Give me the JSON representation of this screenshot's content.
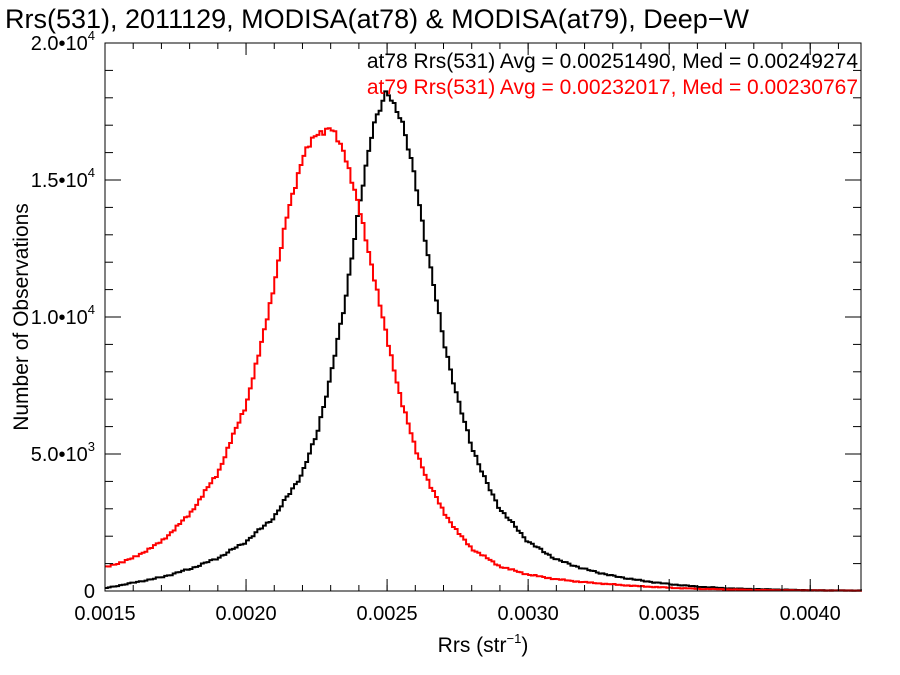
{
  "chart_data": {
    "type": "line",
    "step": true,
    "title": "Rrs(531), 2011129, MODISA(at78) & MODISA(at79), Deep−W",
    "xlabel": "Rrs (str",
    "xlabel_sup": "−1",
    "xlabel_tail": ")",
    "ylabel": "Number of Observations",
    "xlim": [
      0.0015,
      0.00418
    ],
    "ylim": [
      0,
      20000
    ],
    "x_ticks": [
      {
        "value": 0.0015,
        "label": "0.0015"
      },
      {
        "value": 0.002,
        "label": "0.0020"
      },
      {
        "value": 0.0025,
        "label": "0.0025"
      },
      {
        "value": 0.003,
        "label": "0.0030"
      },
      {
        "value": 0.0035,
        "label": "0.0035"
      },
      {
        "value": 0.004,
        "label": "0.0040"
      }
    ],
    "y_ticks": [
      {
        "value": 0,
        "base": "0",
        "exp": ""
      },
      {
        "value": 5000,
        "base": "5.0•10",
        "exp": "3"
      },
      {
        "value": 10000,
        "base": "1.0•10",
        "exp": "4"
      },
      {
        "value": 15000,
        "base": "1.5•10",
        "exp": "4"
      },
      {
        "value": 20000,
        "base": "2.0•10",
        "exp": "4"
      }
    ],
    "legend": [
      {
        "text": "at78 Rrs(531) Avg = 0.00251490, Med = 0.00249274",
        "color": "#000000"
      },
      {
        "text": "at79 Rrs(531) Avg = 0.00232017, Med = 0.00230767",
        "color": "#ff0000"
      }
    ],
    "legend_position": "top-right",
    "series": [
      {
        "color": "#000000",
        "x": [
          0.0015,
          0.0016,
          0.0017,
          0.0018,
          0.0019,
          0.002,
          0.0021,
          0.0022,
          0.00225,
          0.0023,
          0.00235,
          0.0024,
          0.00245,
          0.0025,
          0.00255,
          0.0026,
          0.00265,
          0.0027,
          0.00275,
          0.0028,
          0.00285,
          0.0029,
          0.003,
          0.0031,
          0.0032,
          0.0033,
          0.0034,
          0.0035,
          0.0036,
          0.0037,
          0.0038,
          0.0039,
          0.004,
          0.00418
        ],
        "values": [
          100,
          300,
          500,
          800,
          1200,
          1800,
          2700,
          4300,
          5700,
          7800,
          10500,
          13900,
          17000,
          18200,
          17300,
          15000,
          12000,
          9200,
          7000,
          5300,
          4000,
          3000,
          1800,
          1150,
          800,
          550,
          380,
          250,
          160,
          100,
          70,
          50,
          30,
          20
        ]
      },
      {
        "color": "#ff0000",
        "x": [
          0.0015,
          0.0016,
          0.0017,
          0.0018,
          0.0019,
          0.002,
          0.00205,
          0.0021,
          0.00215,
          0.0022,
          0.00225,
          0.0023,
          0.00235,
          0.0024,
          0.00245,
          0.0025,
          0.00255,
          0.0026,
          0.00265,
          0.0027,
          0.00275,
          0.0028,
          0.0029,
          0.003,
          0.0031,
          0.0032,
          0.0033,
          0.0034,
          0.0035,
          0.0036,
          0.0037,
          0.0038,
          0.0039,
          0.004,
          0.00418
        ],
        "values": [
          850,
          1200,
          1800,
          2800,
          4300,
          6800,
          8800,
          11200,
          13900,
          15800,
          16700,
          16900,
          16000,
          14000,
          11700,
          9200,
          7000,
          5200,
          3900,
          2900,
          2150,
          1550,
          900,
          600,
          430,
          320,
          240,
          170,
          120,
          80,
          60,
          40,
          25,
          15,
          10
        ]
      }
    ]
  }
}
